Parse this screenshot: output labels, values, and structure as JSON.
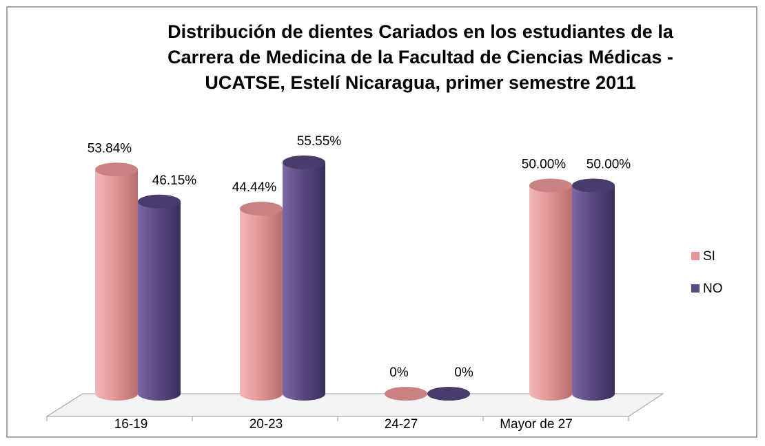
{
  "chart_data": {
    "type": "bar",
    "title_lines": [
      "Distribución de dientes Cariados en los estudiantes de la",
      "Carrera de Medicina de la Facultad de Ciencias Médicas -",
      "UCATSE, Estelí Nicaragua, primer semestre 2011"
    ],
    "categories": [
      "16-19",
      "20-23",
      "24-27",
      "Mayor de 27"
    ],
    "series": [
      {
        "name": "SI",
        "color": "#e39796",
        "values": [
          53.84,
          44.44,
          0,
          50.0
        ],
        "value_labels": [
          "53.84%",
          "44.44%",
          "0%",
          "50.00%"
        ]
      },
      {
        "name": "NO",
        "color": "#5b4a82",
        "values": [
          46.15,
          55.55,
          0,
          50.0
        ],
        "value_labels": [
          "46.15%",
          "55.55%",
          "0%",
          "50.00%"
        ]
      }
    ],
    "legend": "right"
  }
}
